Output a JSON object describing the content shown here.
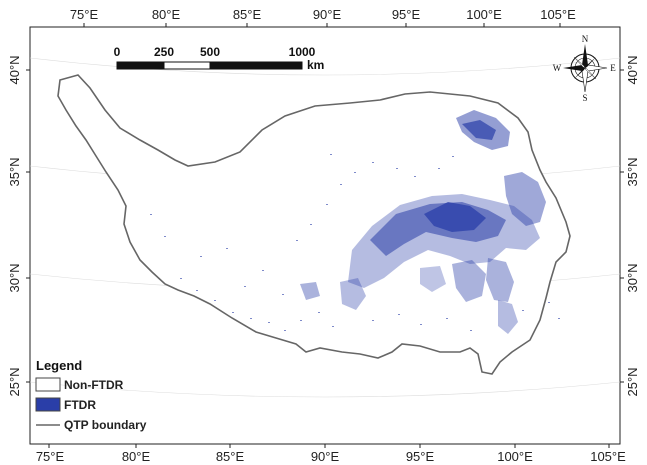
{
  "map": {
    "lon_labels_top": [
      "75°E",
      "80°E",
      "85°E",
      "90°E",
      "95°E",
      "100°E",
      "105°E"
    ],
    "lon_labels_bottom": [
      "75°E",
      "80°E",
      "85°E",
      "90°E",
      "95°E",
      "100°E",
      "105°E"
    ],
    "lat_labels_left": [
      "40°N",
      "35°N",
      "30°N",
      "25°N"
    ],
    "lat_labels_right": [
      "40°N",
      "35°N",
      "30°N",
      "25°N"
    ]
  },
  "scale_bar": {
    "ticks": [
      "0",
      "250",
      "500",
      "1000"
    ],
    "unit": "km"
  },
  "north_arrow": {
    "n": "N",
    "s": "S",
    "e": "E",
    "w": "W"
  },
  "legend": {
    "title": "Legend",
    "items": [
      {
        "label": "Non-FTDR",
        "color": "#ffffff"
      },
      {
        "label": "FTDR",
        "color": "#2a3ea8"
      },
      {
        "label": "QTP boundary",
        "color": "#666666"
      }
    ]
  },
  "colors": {
    "ftdr": "#2a3ea8",
    "boundary": "#666666",
    "frame": "#222222"
  }
}
